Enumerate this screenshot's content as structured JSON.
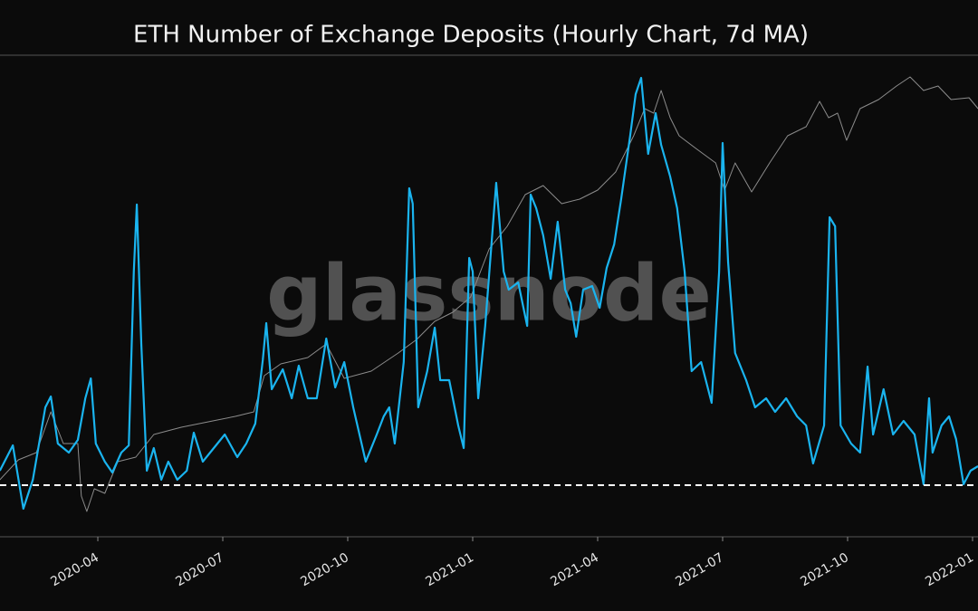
{
  "chart_data": {
    "type": "line",
    "title": "ETH Number of Exchange Deposits (Hourly Chart, 7d MA)",
    "watermark": "glassnode",
    "xlim": [
      2020.0543,
      2022.0109
    ],
    "ylim": [
      0,
      532
    ],
    "xticks": [
      {
        "value": 2020.25,
        "label": "2020-04"
      },
      {
        "value": 2020.5,
        "label": "2020-07"
      },
      {
        "value": 2020.75,
        "label": "2020-10"
      },
      {
        "value": 2021.0,
        "label": "2021-01"
      },
      {
        "value": 2021.25,
        "label": "2021-04"
      },
      {
        "value": 2021.5,
        "label": "2021-07"
      },
      {
        "value": 2021.75,
        "label": "2021-10"
      },
      {
        "value": 2022.0,
        "label": "2022-01"
      }
    ],
    "reference_line": {
      "value": 57,
      "color": "#ffffff",
      "style": "dashed"
    },
    "series": [
      {
        "color": "#8c8c8c",
        "x": [
          2020.054,
          2020.091,
          2020.127,
          2020.156,
          2020.181,
          2020.21,
          2020.217,
          2020.228,
          2020.243,
          2020.264,
          2020.29,
          2020.326,
          2020.362,
          2020.417,
          2020.471,
          2020.525,
          2020.562,
          2020.583,
          2020.616,
          2020.67,
          2020.707,
          2020.743,
          2020.797,
          2020.851,
          2020.888,
          2020.924,
          2020.96,
          2020.996,
          2021.033,
          2021.069,
          2021.105,
          2021.141,
          2021.178,
          2021.214,
          2021.25,
          2021.286,
          2021.322,
          2021.344,
          2021.362,
          2021.377,
          2021.395,
          2021.413,
          2021.449,
          2021.486,
          2021.504,
          2021.525,
          2021.558,
          2021.594,
          2021.63,
          2021.667,
          2021.694,
          2021.712,
          2021.73,
          2021.748,
          2021.775,
          2021.812,
          2021.848,
          2021.875,
          2021.902,
          2021.931,
          2021.957,
          2021.993,
          2022.011
        ],
        "values": [
          63,
          85,
          93,
          138,
          103,
          103,
          45,
          28,
          53,
          48,
          83,
          88,
          113,
          121,
          127,
          133,
          138,
          178,
          191,
          198,
          213,
          175,
          183,
          203,
          218,
          238,
          248,
          265,
          318,
          343,
          378,
          388,
          368,
          373,
          383,
          403,
          443,
          473,
          468,
          493,
          463,
          443,
          428,
          413,
          383,
          413,
          381,
          413,
          443,
          453,
          481,
          463,
          468,
          438,
          473,
          483,
          498,
          508,
          493,
          498,
          483,
          485,
          473
        ]
      },
      {
        "color": "#1ab4ef",
        "x": [
          2020.054,
          2020.08,
          2020.101,
          2020.12,
          2020.145,
          2020.156,
          2020.17,
          2020.192,
          2020.21,
          2020.225,
          2020.236,
          2020.246,
          2020.264,
          2020.279,
          2020.297,
          2020.312,
          2020.322,
          2020.328,
          2020.337,
          2020.348,
          2020.362,
          2020.377,
          2020.391,
          2020.409,
          2020.428,
          2020.442,
          2020.46,
          2020.482,
          2020.504,
          2020.529,
          2020.547,
          2020.565,
          2020.58,
          2020.587,
          2020.598,
          2020.62,
          2020.638,
          2020.652,
          2020.67,
          2020.688,
          2020.707,
          2020.725,
          2020.743,
          2020.761,
          2020.786,
          2020.808,
          2020.822,
          2020.833,
          2020.844,
          2020.862,
          2020.873,
          2020.88,
          2020.891,
          2020.909,
          2020.924,
          2020.935,
          2020.953,
          2020.971,
          2020.982,
          2020.993,
          2021.0,
          2021.011,
          2021.025,
          2021.047,
          2021.062,
          2021.072,
          2021.091,
          2021.109,
          2021.116,
          2021.127,
          2021.141,
          2021.156,
          2021.17,
          2021.185,
          2021.196,
          2021.207,
          2021.221,
          2021.239,
          2021.254,
          2021.268,
          2021.283,
          2021.297,
          2021.315,
          2021.326,
          2021.337,
          2021.351,
          2021.366,
          2021.377,
          2021.395,
          2021.409,
          2021.424,
          2021.438,
          2021.457,
          2021.478,
          2021.493,
          2021.5,
          2021.511,
          2021.525,
          2021.547,
          2021.565,
          2021.587,
          2021.605,
          2021.627,
          2021.649,
          2021.667,
          2021.681,
          2021.703,
          2021.714,
          2021.725,
          2021.736,
          2021.757,
          2021.775,
          2021.79,
          2021.801,
          2021.822,
          2021.841,
          2021.862,
          2021.884,
          2021.902,
          2021.913,
          2021.92,
          2021.938,
          2021.953,
          2021.967,
          2021.982,
          2021.996,
          2022.011
        ],
        "values": [
          73,
          101,
          31,
          63,
          143,
          155,
          103,
          93,
          107,
          153,
          175,
          103,
          83,
          71,
          93,
          101,
          293,
          367,
          213,
          73,
          98,
          63,
          83,
          63,
          73,
          115,
          83,
          98,
          113,
          88,
          103,
          125,
          195,
          236,
          163,
          185,
          153,
          189,
          153,
          153,
          219,
          165,
          193,
          143,
          83,
          113,
          133,
          143,
          103,
          193,
          385,
          368,
          143,
          183,
          231,
          173,
          173,
          123,
          98,
          308,
          293,
          153,
          233,
          391,
          293,
          273,
          281,
          233,
          378,
          363,
          333,
          285,
          348,
          273,
          258,
          221,
          273,
          277,
          253,
          297,
          323,
          373,
          443,
          489,
          507,
          423,
          468,
          433,
          398,
          363,
          293,
          183,
          193,
          148,
          293,
          435,
          303,
          203,
          173,
          143,
          153,
          138,
          153,
          133,
          123,
          81,
          123,
          353,
          343,
          123,
          103,
          93,
          188,
          113,
          163,
          113,
          128,
          113,
          58,
          153,
          93,
          123,
          133,
          108,
          58,
          73,
          78
        ]
      }
    ]
  }
}
